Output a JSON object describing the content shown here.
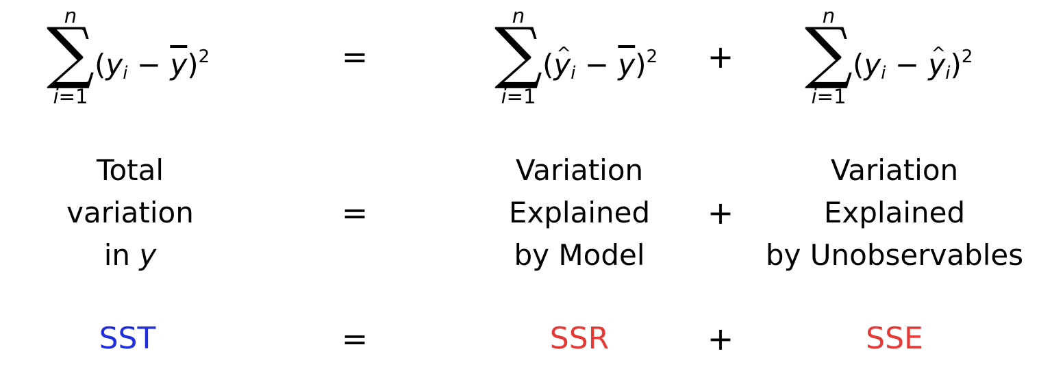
{
  "formulas": {
    "sst": {
      "top": "n",
      "bottom_var": "i",
      "bottom_eq": "=1",
      "open": "(",
      "y": "y",
      "sub": "i",
      "minus": " − ",
      "ybar": "y",
      "close": ")",
      "power": "2"
    },
    "ssr": {
      "top": "n",
      "bottom_var": "i",
      "bottom_eq": "=1",
      "open": "(",
      "yhat": "y",
      "sub": "i",
      "minus": " − ",
      "ybar": "y",
      "close": ")",
      "power": "2"
    },
    "sse": {
      "top": "n",
      "bottom_var": "i",
      "bottom_eq": "=1",
      "open": "(",
      "y": "y",
      "sub": "i",
      "minus": " − ",
      "yhat": "y",
      "sub2": "i",
      "close": ")",
      "power": "2"
    }
  },
  "operators": {
    "equals": "=",
    "plus": "+"
  },
  "labels": {
    "total": {
      "line1": "Total",
      "line2": "variation",
      "line3_prefix": "in ",
      "line3_var": "y"
    },
    "model": {
      "line1": "Variation",
      "line2": "Explained",
      "line3": "by Model"
    },
    "unobs": {
      "line1": "Variation",
      "line2": "Explained",
      "line3": "by Unobservables"
    }
  },
  "abbreviations": {
    "sst": "SST",
    "ssr": "SSR",
    "sse": "SSE"
  },
  "colors": {
    "sst": "#1f2fe0",
    "ssr": "#e53935",
    "sse": "#e53935",
    "text": "#000000"
  }
}
